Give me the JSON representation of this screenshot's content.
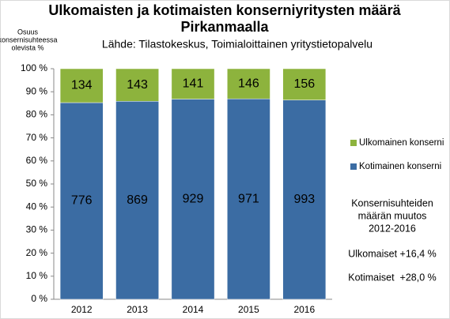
{
  "chart_data": {
    "type": "bar",
    "stacking": "percent",
    "title": [
      "Ulkomaisten ja kotimaisten konserniyritysten määrä",
      "Pirkanmaalla"
    ],
    "subtitle": "Lähde: Tilastokeskus, Toimialoittainen yritystietopalvelu",
    "y_label": [
      "Osuus",
      "konsernisuhteessa",
      "olevista %"
    ],
    "categories": [
      "2012",
      "2013",
      "2014",
      "2015",
      "2016"
    ],
    "series": [
      {
        "name": "Kotimainen konserni",
        "color": "#3b6ca3",
        "values": [
          776,
          869,
          929,
          971,
          993
        ]
      },
      {
        "name": "Ulkomainen konserni",
        "color": "#8db33d",
        "values": [
          134,
          143,
          141,
          146,
          156
        ]
      }
    ],
    "ylim": [
      0,
      100
    ],
    "yticks": [
      {
        "value": 0,
        "label": "0 %"
      },
      {
        "value": 10,
        "label": "10 %"
      },
      {
        "value": 20,
        "label": "20 %"
      },
      {
        "value": 30,
        "label": "30 %"
      },
      {
        "value": 40,
        "label": "40 %"
      },
      {
        "value": 50,
        "label": "50 %"
      },
      {
        "value": 60,
        "label": "60 %"
      },
      {
        "value": 70,
        "label": "70 %"
      },
      {
        "value": 80,
        "label": "80 %"
      },
      {
        "value": 90,
        "label": "90 %"
      },
      {
        "value": 100,
        "label": "100 %"
      }
    ],
    "grid": false,
    "legend": "right",
    "annotation": [
      "Konsernisuhteiden",
      "määrän muutos",
      "2012-2016",
      "Ulkomaiset +16,4 %",
      "Kotimaiset  +28,0 %"
    ]
  }
}
